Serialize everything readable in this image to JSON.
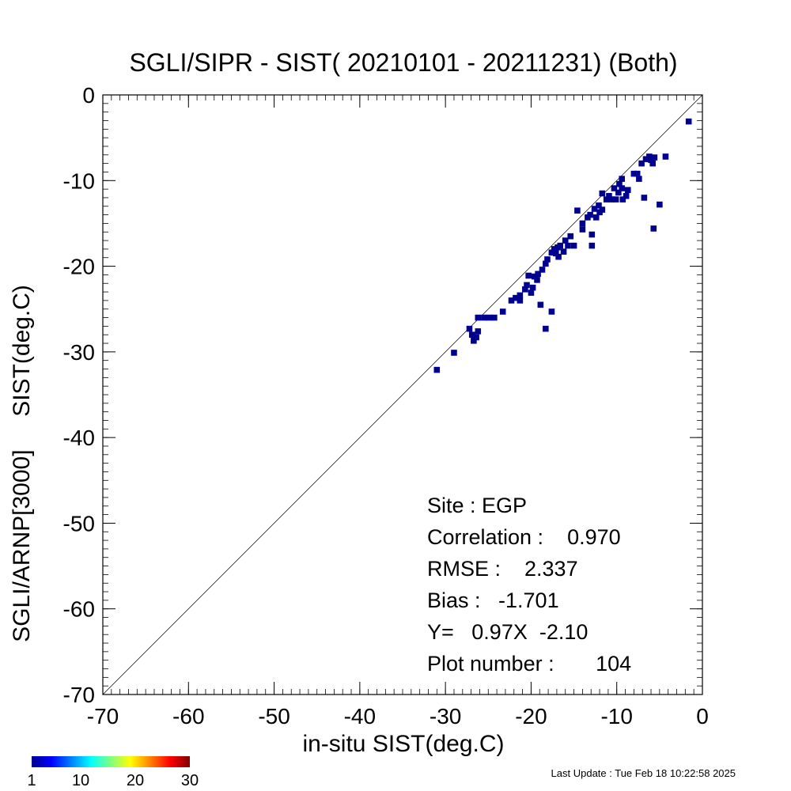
{
  "chart_data": {
    "type": "scatter",
    "title": "SGLI/SIPR - SIST( 20210101 - 20211231) (Both)",
    "xlabel": "in-situ SIST(deg.C)",
    "ylabel": "SGLI/ARNP[3000]     SIST(deg.C)",
    "xlim": [
      -70,
      0
    ],
    "ylim": [
      -70,
      0
    ],
    "xticks": [
      -70,
      -60,
      -50,
      -40,
      -30,
      -20,
      -10,
      0
    ],
    "yticks": [
      -70,
      -60,
      -50,
      -40,
      -30,
      -20,
      -10,
      0
    ],
    "xtick_labels": [
      "-70",
      "-60",
      "-50",
      "-40",
      "-30",
      "-20",
      "-10",
      "0"
    ],
    "ytick_labels": [
      "-70",
      "-60",
      "-50",
      "-40",
      "-30",
      "-20",
      "-10",
      "0"
    ],
    "grid": false,
    "reference_line": "1:1",
    "cell_size": 0.7,
    "density_color": "#00008f",
    "points": [
      [
        -31.0,
        -32.1
      ],
      [
        -29.0,
        -30.1
      ],
      [
        -27.2,
        -27.3
      ],
      [
        -26.9,
        -28.0
      ],
      [
        -26.7,
        -28.7
      ],
      [
        -26.4,
        -28.3
      ],
      [
        -26.2,
        -27.6
      ],
      [
        -26.2,
        -26.0
      ],
      [
        -25.5,
        -26.0
      ],
      [
        -24.9,
        -26.0
      ],
      [
        -24.3,
        -26.0
      ],
      [
        -23.3,
        -25.3
      ],
      [
        -22.3,
        -24.0
      ],
      [
        -21.8,
        -23.7
      ],
      [
        -21.3,
        -23.4
      ],
      [
        -21.3,
        -24.0
      ],
      [
        -20.7,
        -22.7
      ],
      [
        -20.5,
        -22.2
      ],
      [
        -20.3,
        -21.1
      ],
      [
        -20.0,
        -23.1
      ],
      [
        -19.8,
        -22.5
      ],
      [
        -19.6,
        -21.2
      ],
      [
        -19.3,
        -21.6
      ],
      [
        -19.2,
        -20.9
      ],
      [
        -18.9,
        -24.5
      ],
      [
        -18.7,
        -20.4
      ],
      [
        -18.3,
        -19.7
      ],
      [
        -18.1,
        -19.2
      ],
      [
        -18.3,
        -27.3
      ],
      [
        -17.6,
        -25.3
      ],
      [
        -17.6,
        -18.4
      ],
      [
        -17.3,
        -18.0
      ],
      [
        -17.1,
        -18.5
      ],
      [
        -16.9,
        -17.8
      ],
      [
        -16.8,
        -18.9
      ],
      [
        -16.6,
        -17.6
      ],
      [
        -16.2,
        -18.3
      ],
      [
        -16.0,
        -17.0
      ],
      [
        -15.7,
        -17.6
      ],
      [
        -15.4,
        -16.5
      ],
      [
        -15.0,
        -17.6
      ],
      [
        -14.6,
        -13.5
      ],
      [
        -14.0,
        -15.0
      ],
      [
        -14.0,
        -15.7
      ],
      [
        -13.4,
        -14.3
      ],
      [
        -13.1,
        -14.0
      ],
      [
        -12.9,
        -16.3
      ],
      [
        -12.9,
        -17.6
      ],
      [
        -12.6,
        -13.3
      ],
      [
        -12.4,
        -14.3
      ],
      [
        -12.1,
        -12.9
      ],
      [
        -12.0,
        -13.7
      ],
      [
        -11.7,
        -13.4
      ],
      [
        -11.7,
        -11.5
      ],
      [
        -11.2,
        -12.2
      ],
      [
        -10.9,
        -11.8
      ],
      [
        -10.6,
        -12.2
      ],
      [
        -10.3,
        -10.9
      ],
      [
        -10.1,
        -12.2
      ],
      [
        -9.8,
        -11.4
      ],
      [
        -9.7,
        -10.4
      ],
      [
        -9.4,
        -9.8
      ],
      [
        -9.4,
        -10.9
      ],
      [
        -9.3,
        -12.2
      ],
      [
        -8.9,
        -11.8
      ],
      [
        -8.7,
        -11.1
      ],
      [
        -8.0,
        -9.2
      ],
      [
        -7.6,
        -9.2
      ],
      [
        -7.4,
        -9.8
      ],
      [
        -7.1,
        -8.0
      ],
      [
        -6.8,
        -12.0
      ],
      [
        -6.6,
        -7.5
      ],
      [
        -6.2,
        -7.2
      ],
      [
        -6.0,
        -7.6
      ],
      [
        -5.8,
        -8.0
      ],
      [
        -5.6,
        -7.3
      ],
      [
        -5.7,
        -15.6
      ],
      [
        -5.0,
        -12.8
      ],
      [
        -4.3,
        -7.2
      ],
      [
        -1.6,
        -3.1
      ]
    ],
    "colorbar": {
      "min": 1,
      "max": 30,
      "ticks": [
        1,
        10,
        20,
        30
      ],
      "tick_labels": [
        "1",
        "10",
        "20",
        "30"
      ],
      "colors": [
        "#00008f",
        "#0000ff",
        "#0080ff",
        "#00ffff",
        "#80ff80",
        "#ffff00",
        "#ff8000",
        "#ff0000",
        "#800000"
      ]
    },
    "annotations": {
      "site": "Site : EGP",
      "correlation": "Correlation :    0.970",
      "rmse": "RMSE :    2.337",
      "bias": "Bias :   -1.701",
      "regression": "Y=   0.97X  -2.10",
      "plot_number": "Plot number :       104"
    },
    "last_update": "Last Update : Tue Feb 18 10:22:58 2025"
  }
}
